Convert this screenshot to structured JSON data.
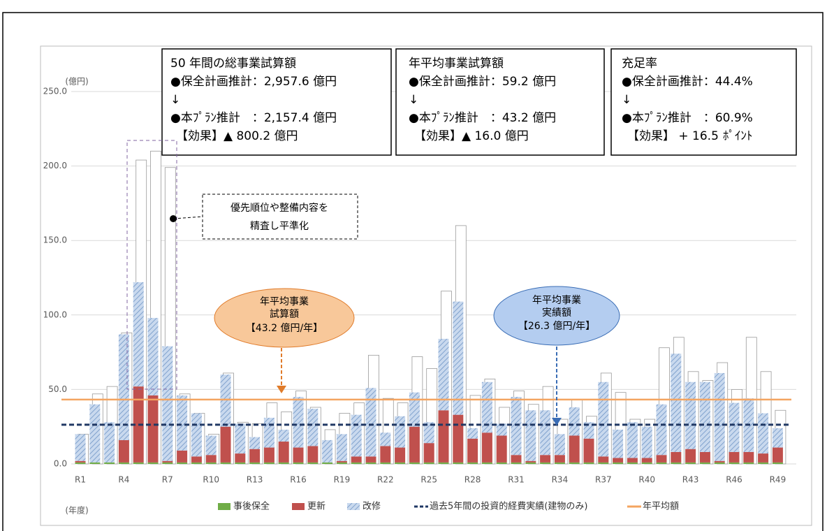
{
  "chart_data": {
    "type": "stacked-bar",
    "y_unit": "(億円)",
    "x_unit": "(年度)",
    "categories": [
      "R1",
      null,
      null,
      "R4",
      null,
      null,
      "R7",
      null,
      null,
      "R10",
      null,
      null,
      "R13",
      null,
      null,
      "R16",
      null,
      null,
      "R19",
      null,
      null,
      "R22",
      null,
      null,
      "R25",
      null,
      null,
      "R28",
      null,
      null,
      "R31",
      null,
      null,
      "R34",
      null,
      null,
      "R37",
      null,
      null,
      "R40",
      null,
      null,
      "R43",
      null,
      null,
      "R46",
      null,
      null,
      "R49"
    ],
    "ylim": [
      0,
      250
    ],
    "yticks": [
      {
        "value": 0,
        "label": "0.0"
      },
      {
        "value": 50,
        "label": "50.0"
      },
      {
        "value": 100,
        "label": "100.0"
      },
      {
        "value": 150,
        "label": "150.0"
      },
      {
        "value": 200,
        "label": "200.0"
      },
      {
        "value": 250,
        "label": "250.0"
      }
    ],
    "grid": true,
    "before_plan": {
      "color": "#ffffff",
      "values": [
        20,
        47,
        52,
        88,
        204,
        210,
        199,
        47,
        34,
        20,
        61,
        28,
        27,
        41,
        35,
        49,
        38,
        23,
        34,
        41,
        73,
        44,
        41,
        72,
        64,
        116,
        160,
        46,
        57,
        38,
        49,
        40,
        52,
        30,
        43,
        32,
        61,
        48,
        30,
        30,
        78,
        85,
        62,
        56,
        68,
        50,
        85,
        62,
        36
      ]
    },
    "series": [
      {
        "name": "事後保全",
        "color": "#70ad47",
        "values": [
          1,
          1,
          1,
          1,
          1,
          1,
          1,
          1,
          1,
          1,
          1,
          1,
          1,
          1,
          1,
          1,
          1,
          1,
          1,
          1,
          1,
          1,
          1,
          1,
          1,
          1,
          1,
          1,
          1,
          1,
          1,
          1,
          1,
          1,
          1,
          1,
          1,
          1,
          1,
          1,
          1,
          1,
          1,
          1,
          1,
          1,
          1,
          1,
          1
        ]
      },
      {
        "name": "更新",
        "color": "#c0504d",
        "values": [
          1,
          0,
          0,
          15,
          51,
          45,
          1,
          8,
          4,
          5,
          24,
          6,
          9,
          10,
          14,
          10,
          11,
          0,
          1,
          4,
          4,
          11,
          10,
          24,
          13,
          35,
          32,
          16,
          20,
          18,
          5,
          1,
          5,
          5,
          18,
          16,
          4,
          3,
          3,
          3,
          5,
          7,
          9,
          7,
          1,
          7,
          7,
          6,
          10
        ]
      },
      {
        "name": "改修",
        "color": "#9dbbe0",
        "values": [
          18,
          39,
          27,
          71,
          70,
          52,
          77,
          37,
          29,
          13,
          35,
          20,
          8,
          20,
          8,
          34,
          25,
          15,
          18,
          28,
          46,
          9,
          21,
          23,
          14,
          48,
          76,
          7,
          34,
          8,
          39,
          34,
          30,
          14,
          19,
          11,
          50,
          19,
          24,
          21,
          34,
          66,
          45,
          47,
          59,
          33,
          36,
          27,
          13
        ]
      }
    ],
    "lines": [
      {
        "name": "過去5年間の投資的経費実績(建物のみ)",
        "value": 26.3,
        "color": "#203864",
        "dashed": true
      },
      {
        "name": "年平均額",
        "value": 43.2,
        "color": "#f4a460",
        "dashed": false
      }
    ],
    "boxes": [
      {
        "lines": [
          "50 年間の総事業試算額",
          "●保全計画推計：2,957.6 億円",
          "↓",
          "●本ﾌﾟﾗﾝ推計　：2,157.4 億円",
          "【効果】▲ 800.2 億円"
        ]
      },
      {
        "lines": [
          "年平均事業試算額",
          "●保全計画推計：59.2 億円",
          "↓",
          "●本ﾌﾟﾗﾝ推計　：43.2 億円",
          "【効果】▲ 16.0 億円"
        ]
      },
      {
        "lines": [
          "充足率",
          "●保全計画推計：44.4%",
          "↓",
          "●本ﾌﾟﾗﾝ推計　：60.9%",
          "【効果】 + 16.5"
        ],
        "small_unit": "ﾎﾟｲﾝﾄ"
      }
    ],
    "annotations": {
      "leveling": [
        "優先順位や整備内容を",
        "精査し平準化"
      ],
      "plan_average": [
        "年平均事業",
        "試算額",
        "【43.2 億円/年】"
      ],
      "actual_average": [
        "年平均事業",
        "実績額",
        "【26.3 億円/年】"
      ]
    }
  }
}
